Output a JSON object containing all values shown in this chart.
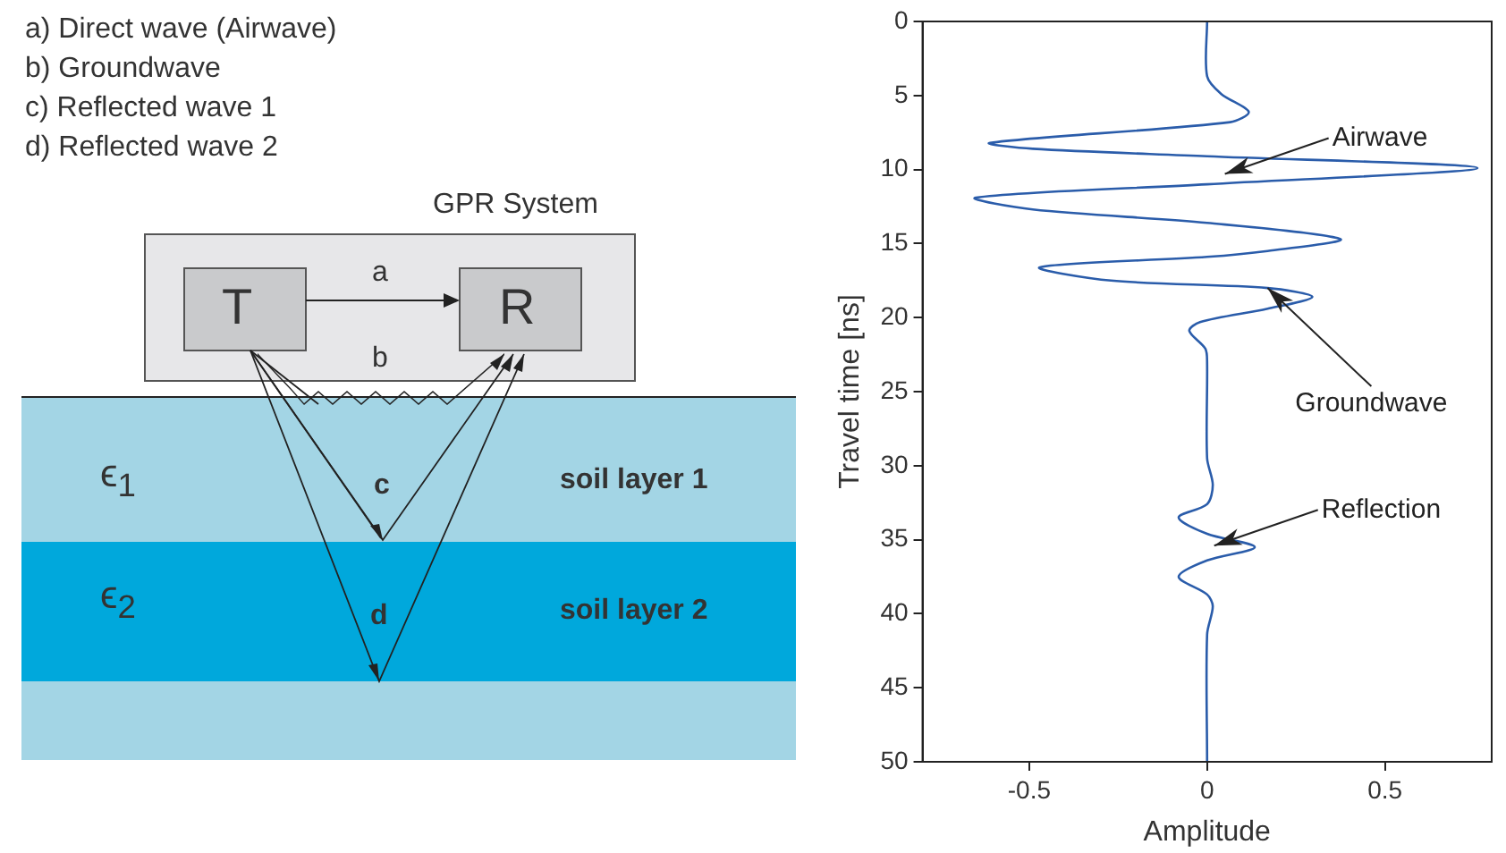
{
  "chart_data": [
    {
      "type": "other",
      "annotations": [
        "a) Direct wave (Airwave)",
        "b) Groundwave",
        "c) Reflected wave 1",
        "d) Reflected wave 2",
        "GPR System",
        "T",
        "R",
        "a",
        "b",
        "c",
        "d",
        "ϵ$_{1}$",
        "ϵ$_{2}$",
        "soil layer 1",
        "soil layer 2"
      ]
    },
    {
      "type": "line",
      "xlabel": "Amplitude",
      "ylabel": "Travel time [ns]",
      "xlim": [
        -0.8,
        0.8
      ],
      "ylim": [
        50,
        0
      ],
      "xticks": [
        -0.5,
        0,
        0.5
      ],
      "yticks": [
        0,
        5,
        10,
        15,
        20,
        25,
        30,
        35,
        40,
        45,
        50
      ],
      "grid": false,
      "legend": false,
      "marker": "none",
      "series": [
        {
          "color": "#2a5caa",
          "x": [
            0,
            0,
            0.04,
            0.117,
            0.065,
            -0.61,
            -0.49,
            0,
            0.76,
            0,
            -0.65,
            -0.49,
            0,
            0.375,
            0.17,
            0,
            -0.47,
            -0.27,
            0.17,
            0.296,
            0.17,
            -0.02,
            -0.05,
            -0.005,
            0,
            0,
            0.016,
            0,
            -0.08,
            0,
            0.134,
            0,
            -0.08,
            0,
            0.016,
            0,
            0
          ],
          "values": [
            0,
            3.7,
            4.9,
            6.1,
            6.8,
            8.2,
            8.6,
            9.1,
            9.9,
            11.0,
            11.9,
            12.7,
            13.6,
            14.7,
            15.5,
            15.9,
            16.6,
            17.5,
            18.0,
            18.6,
            19.4,
            20.3,
            20.9,
            22.1,
            23,
            29.5,
            31.3,
            32.6,
            33.5,
            34.6,
            35.5,
            36.4,
            37.5,
            38.7,
            39.5,
            41.4,
            50
          ]
        }
      ],
      "annotations": [
        {
          "text": "Airwave",
          "x": 0.05,
          "y": 10.3
        },
        {
          "text": "Groundwave",
          "x": 0.17,
          "y": 18.0
        },
        {
          "text": "Reflection",
          "x": 0.02,
          "y": 35.4
        }
      ]
    }
  ]
}
